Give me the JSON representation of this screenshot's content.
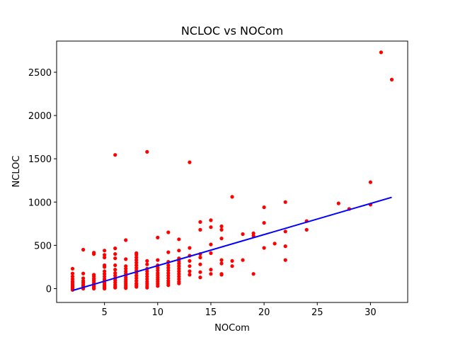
{
  "chart_data": {
    "type": "scatter",
    "title": "NCLOC vs NOCom",
    "xlabel": "NOCom",
    "ylabel": "NCLOC",
    "xlim": [
      0.5,
      33.5
    ],
    "ylim": [
      -160,
      2860
    ],
    "xticks": [
      5,
      10,
      15,
      20,
      25,
      30
    ],
    "yticks": [
      0,
      500,
      1000,
      1500,
      2000,
      2500
    ],
    "grid": false,
    "colors": {
      "points": "#ff0000",
      "fit_line": "#0000ff",
      "axes": "#000000"
    },
    "fit_line": {
      "x": [
        2,
        32
      ],
      "y": [
        -22,
        1055
      ]
    },
    "points": [
      {
        "x": 2,
        "y": 230
      },
      {
        "x": 2,
        "y": 175
      },
      {
        "x": 2,
        "y": 140
      },
      {
        "x": 2,
        "y": 110
      },
      {
        "x": 2,
        "y": 85
      },
      {
        "x": 2,
        "y": 65
      },
      {
        "x": 2,
        "y": 45
      },
      {
        "x": 2,
        "y": 30
      },
      {
        "x": 2,
        "y": 15
      },
      {
        "x": 2,
        "y": 5
      },
      {
        "x": 2,
        "y": -5
      },
      {
        "x": 2,
        "y": -15
      },
      {
        "x": 3,
        "y": 450
      },
      {
        "x": 3,
        "y": 175
      },
      {
        "x": 3,
        "y": 120
      },
      {
        "x": 3,
        "y": 90
      },
      {
        "x": 3,
        "y": 70
      },
      {
        "x": 3,
        "y": 50
      },
      {
        "x": 3,
        "y": 35
      },
      {
        "x": 3,
        "y": 20
      },
      {
        "x": 3,
        "y": 10
      },
      {
        "x": 3,
        "y": 0
      },
      {
        "x": 4,
        "y": 415
      },
      {
        "x": 4,
        "y": 400
      },
      {
        "x": 4,
        "y": 160
      },
      {
        "x": 4,
        "y": 140
      },
      {
        "x": 4,
        "y": 115
      },
      {
        "x": 4,
        "y": 95
      },
      {
        "x": 4,
        "y": 75
      },
      {
        "x": 4,
        "y": 55
      },
      {
        "x": 4,
        "y": 40
      },
      {
        "x": 4,
        "y": 25
      },
      {
        "x": 4,
        "y": 10
      },
      {
        "x": 4,
        "y": 0
      },
      {
        "x": 5,
        "y": 440
      },
      {
        "x": 5,
        "y": 390
      },
      {
        "x": 5,
        "y": 360
      },
      {
        "x": 5,
        "y": 270
      },
      {
        "x": 5,
        "y": 250
      },
      {
        "x": 5,
        "y": 200
      },
      {
        "x": 5,
        "y": 170
      },
      {
        "x": 5,
        "y": 140
      },
      {
        "x": 5,
        "y": 110
      },
      {
        "x": 5,
        "y": 90
      },
      {
        "x": 5,
        "y": 70
      },
      {
        "x": 5,
        "y": 50
      },
      {
        "x": 5,
        "y": 35
      },
      {
        "x": 5,
        "y": 20
      },
      {
        "x": 5,
        "y": 10
      },
      {
        "x": 5,
        "y": 0
      },
      {
        "x": 6,
        "y": 1545
      },
      {
        "x": 6,
        "y": 465
      },
      {
        "x": 6,
        "y": 400
      },
      {
        "x": 6,
        "y": 350
      },
      {
        "x": 6,
        "y": 270
      },
      {
        "x": 6,
        "y": 220
      },
      {
        "x": 6,
        "y": 180
      },
      {
        "x": 6,
        "y": 150
      },
      {
        "x": 6,
        "y": 120
      },
      {
        "x": 6,
        "y": 95
      },
      {
        "x": 6,
        "y": 70
      },
      {
        "x": 6,
        "y": 45
      },
      {
        "x": 6,
        "y": 25
      },
      {
        "x": 6,
        "y": 10
      },
      {
        "x": 7,
        "y": 560
      },
      {
        "x": 7,
        "y": 340
      },
      {
        "x": 7,
        "y": 260
      },
      {
        "x": 7,
        "y": 230
      },
      {
        "x": 7,
        "y": 200
      },
      {
        "x": 7,
        "y": 175
      },
      {
        "x": 7,
        "y": 150
      },
      {
        "x": 7,
        "y": 125
      },
      {
        "x": 7,
        "y": 100
      },
      {
        "x": 7,
        "y": 80
      },
      {
        "x": 7,
        "y": 60
      },
      {
        "x": 7,
        "y": 40
      },
      {
        "x": 7,
        "y": 20
      },
      {
        "x": 7,
        "y": 5
      },
      {
        "x": 8,
        "y": 410
      },
      {
        "x": 8,
        "y": 390
      },
      {
        "x": 8,
        "y": 360
      },
      {
        "x": 8,
        "y": 330
      },
      {
        "x": 8,
        "y": 300
      },
      {
        "x": 8,
        "y": 270
      },
      {
        "x": 8,
        "y": 240
      },
      {
        "x": 8,
        "y": 210
      },
      {
        "x": 8,
        "y": 180
      },
      {
        "x": 8,
        "y": 150
      },
      {
        "x": 8,
        "y": 120
      },
      {
        "x": 8,
        "y": 90
      },
      {
        "x": 8,
        "y": 60
      },
      {
        "x": 8,
        "y": 40
      },
      {
        "x": 8,
        "y": 20
      },
      {
        "x": 9,
        "y": 1580
      },
      {
        "x": 9,
        "y": 320
      },
      {
        "x": 9,
        "y": 280
      },
      {
        "x": 9,
        "y": 230
      },
      {
        "x": 9,
        "y": 200
      },
      {
        "x": 9,
        "y": 170
      },
      {
        "x": 9,
        "y": 140
      },
      {
        "x": 9,
        "y": 110
      },
      {
        "x": 9,
        "y": 80
      },
      {
        "x": 9,
        "y": 55
      },
      {
        "x": 9,
        "y": 30
      },
      {
        "x": 9,
        "y": 10
      },
      {
        "x": 10,
        "y": 590
      },
      {
        "x": 10,
        "y": 330
      },
      {
        "x": 10,
        "y": 270
      },
      {
        "x": 10,
        "y": 240
      },
      {
        "x": 10,
        "y": 210
      },
      {
        "x": 10,
        "y": 180
      },
      {
        "x": 10,
        "y": 155
      },
      {
        "x": 10,
        "y": 130
      },
      {
        "x": 10,
        "y": 105
      },
      {
        "x": 10,
        "y": 80
      },
      {
        "x": 10,
        "y": 55
      },
      {
        "x": 10,
        "y": 30
      },
      {
        "x": 11,
        "y": 650
      },
      {
        "x": 11,
        "y": 420
      },
      {
        "x": 11,
        "y": 310
      },
      {
        "x": 11,
        "y": 270
      },
      {
        "x": 11,
        "y": 240
      },
      {
        "x": 11,
        "y": 210
      },
      {
        "x": 11,
        "y": 180
      },
      {
        "x": 11,
        "y": 150
      },
      {
        "x": 11,
        "y": 120
      },
      {
        "x": 11,
        "y": 90
      },
      {
        "x": 11,
        "y": 65
      },
      {
        "x": 11,
        "y": 40
      },
      {
        "x": 12,
        "y": 570
      },
      {
        "x": 12,
        "y": 440
      },
      {
        "x": 12,
        "y": 350
      },
      {
        "x": 12,
        "y": 320
      },
      {
        "x": 12,
        "y": 290
      },
      {
        "x": 12,
        "y": 260
      },
      {
        "x": 12,
        "y": 230
      },
      {
        "x": 12,
        "y": 200
      },
      {
        "x": 12,
        "y": 170
      },
      {
        "x": 12,
        "y": 140
      },
      {
        "x": 12,
        "y": 110
      },
      {
        "x": 12,
        "y": 80
      },
      {
        "x": 12,
        "y": 60
      },
      {
        "x": 13,
        "y": 1460
      },
      {
        "x": 13,
        "y": 470
      },
      {
        "x": 13,
        "y": 380
      },
      {
        "x": 13,
        "y": 320
      },
      {
        "x": 13,
        "y": 260
      },
      {
        "x": 13,
        "y": 200
      },
      {
        "x": 13,
        "y": 160
      },
      {
        "x": 14,
        "y": 770
      },
      {
        "x": 14,
        "y": 680
      },
      {
        "x": 14,
        "y": 400
      },
      {
        "x": 14,
        "y": 360
      },
      {
        "x": 14,
        "y": 280
      },
      {
        "x": 14,
        "y": 190
      },
      {
        "x": 14,
        "y": 130
      },
      {
        "x": 15,
        "y": 790
      },
      {
        "x": 15,
        "y": 710
      },
      {
        "x": 15,
        "y": 510
      },
      {
        "x": 15,
        "y": 410
      },
      {
        "x": 15,
        "y": 220
      },
      {
        "x": 15,
        "y": 170
      },
      {
        "x": 16,
        "y": 720
      },
      {
        "x": 16,
        "y": 680
      },
      {
        "x": 16,
        "y": 580
      },
      {
        "x": 16,
        "y": 330
      },
      {
        "x": 16,
        "y": 290
      },
      {
        "x": 16,
        "y": 170
      },
      {
        "x": 16,
        "y": 160
      },
      {
        "x": 17,
        "y": 1060
      },
      {
        "x": 17,
        "y": 320
      },
      {
        "x": 17,
        "y": 260
      },
      {
        "x": 18,
        "y": 630
      },
      {
        "x": 18,
        "y": 330
      },
      {
        "x": 19,
        "y": 640
      },
      {
        "x": 19,
        "y": 610
      },
      {
        "x": 19,
        "y": 170
      },
      {
        "x": 20,
        "y": 940
      },
      {
        "x": 20,
        "y": 760
      },
      {
        "x": 20,
        "y": 470
      },
      {
        "x": 21,
        "y": 520
      },
      {
        "x": 22,
        "y": 1000
      },
      {
        "x": 22,
        "y": 660
      },
      {
        "x": 22,
        "y": 490
      },
      {
        "x": 22,
        "y": 330
      },
      {
        "x": 24,
        "y": 780
      },
      {
        "x": 24,
        "y": 680
      },
      {
        "x": 27,
        "y": 985
      },
      {
        "x": 28,
        "y": 920
      },
      {
        "x": 30,
        "y": 1230
      },
      {
        "x": 30,
        "y": 970
      },
      {
        "x": 31,
        "y": 2730
      },
      {
        "x": 32,
        "y": 2415
      }
    ]
  }
}
